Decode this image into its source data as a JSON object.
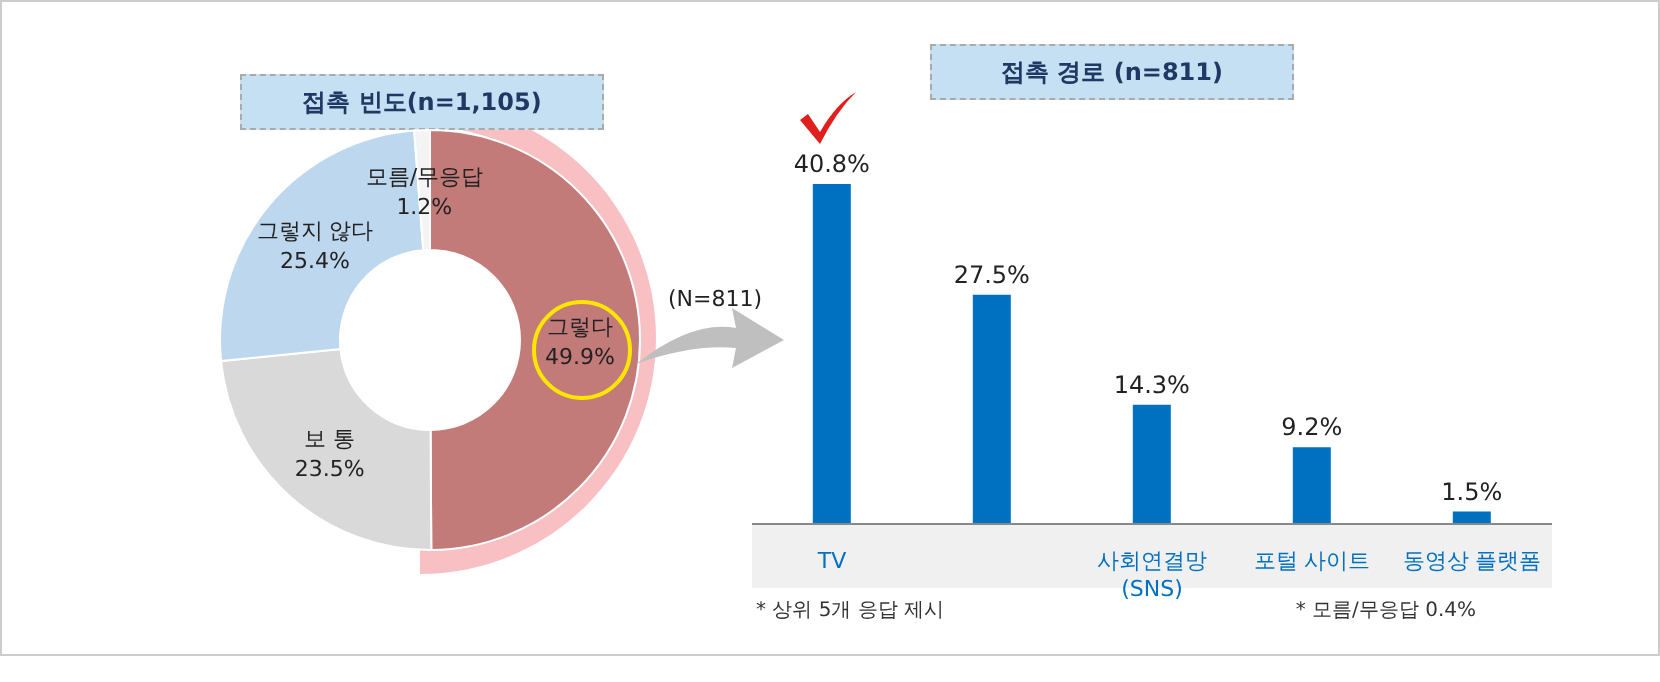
{
  "chart_data": [
    {
      "type": "donut",
      "title": "접촉 빈도(n=1,105)",
      "categories": [
        "그렇다",
        "보 통",
        "그렇지 않다",
        "모름/무응답"
      ],
      "values": [
        49.9,
        23.5,
        25.4,
        1.2
      ],
      "value_labels": [
        "49.9%",
        "23.5%",
        "25.4%",
        "1.2%"
      ],
      "colors": [
        "#c27b79",
        "#d9d9d9",
        "#bdd7ee",
        "#f4f4f4"
      ]
    },
    {
      "type": "bar",
      "title": "접촉 경로 (n=811)",
      "categories": [
        "TV",
        null,
        "사회연결망\n(SNS)",
        "포털 사이트",
        "동영상 플랫폼"
      ],
      "values": [
        40.8,
        27.5,
        14.3,
        9.2,
        1.5
      ],
      "value_labels": [
        "40.8%",
        "27.5%",
        "14.3%",
        "9.2%",
        "1.5%"
      ],
      "color": "#0070c0",
      "annotations": [
        "(N=811)",
        "* 상위  5개 응답 제시",
        "* 모름/무응답 0.4%"
      ]
    }
  ]
}
